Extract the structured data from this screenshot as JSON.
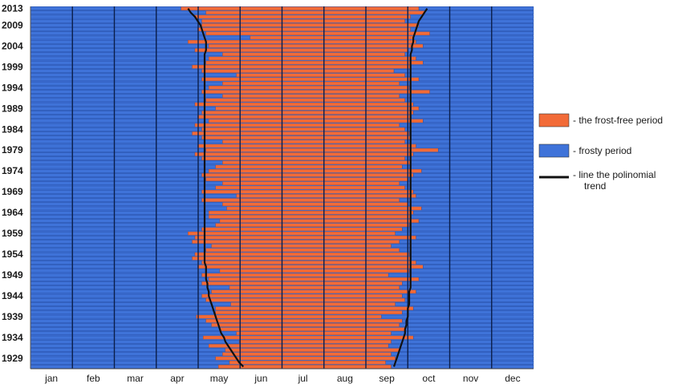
{
  "chart_data": {
    "type": "bar",
    "orientation": "horizontal",
    "stacked": true,
    "y_ticks": [
      "2013",
      "2009",
      "2004",
      "1999",
      "1994",
      "1989",
      "1984",
      "1979",
      "1974",
      "1969",
      "1964",
      "1959",
      "1954",
      "1949",
      "1944",
      "1939",
      "1934",
      "1929"
    ],
    "x_ticks": [
      "jan",
      "feb",
      "mar",
      "apr",
      "may",
      "jun",
      "jul",
      "aug",
      "sep",
      "oct",
      "nov",
      "dec"
    ],
    "xlim_days": [
      1,
      365
    ],
    "ylim_years": [
      1927,
      2013
    ],
    "grid": "vertical month lines",
    "legend_position": "right",
    "series": [
      {
        "name": "- the frost-free period",
        "color": "#F26B38"
      },
      {
        "name": "- frosty period",
        "color": "#3F73D9"
      },
      {
        "name": "- line the polinomial trend",
        "color": "#111111"
      }
    ],
    "years": [
      1927,
      1928,
      1929,
      1930,
      1931,
      1932,
      1933,
      1934,
      1935,
      1936,
      1937,
      1938,
      1939,
      1940,
      1941,
      1942,
      1943,
      1944,
      1945,
      1946,
      1947,
      1948,
      1949,
      1950,
      1951,
      1952,
      1953,
      1954,
      1955,
      1956,
      1957,
      1958,
      1959,
      1960,
      1961,
      1962,
      1963,
      1964,
      1965,
      1966,
      1967,
      1968,
      1969,
      1970,
      1971,
      1972,
      1973,
      1974,
      1975,
      1976,
      1977,
      1978,
      1979,
      1980,
      1981,
      1982,
      1983,
      1984,
      1985,
      1986,
      1987,
      1988,
      1989,
      1990,
      1991,
      1992,
      1993,
      1994,
      1995,
      1996,
      1997,
      1998,
      1999,
      2000,
      2001,
      2002,
      2003,
      2004,
      2005,
      2006,
      2007,
      2008,
      2009,
      2010,
      2011,
      2012,
      2013
    ],
    "last_spring_frost_day": [
      137,
      145,
      135,
      140,
      142,
      130,
      152,
      126,
      150,
      138,
      132,
      128,
      121,
      135,
      135,
      146,
      128,
      125,
      132,
      145,
      125,
      130,
      125,
      138,
      122,
      125,
      118,
      120,
      128,
      132,
      118,
      120,
      115,
      125,
      135,
      138,
      130,
      130,
      143,
      140,
      125,
      150,
      125,
      135,
      140,
      128,
      125,
      130,
      135,
      140,
      125,
      120,
      128,
      122,
      140,
      125,
      118,
      125,
      120,
      130,
      122,
      125,
      135,
      120,
      128,
      140,
      125,
      130,
      140,
      125,
      150,
      125,
      118,
      128,
      130,
      140,
      120,
      130,
      115,
      160,
      128,
      122,
      125,
      125,
      120,
      128,
      110
    ],
    "first_autumn_frost_day": [
      262,
      258,
      265,
      262,
      268,
      260,
      262,
      278,
      262,
      272,
      268,
      270,
      255,
      270,
      278,
      265,
      272,
      270,
      280,
      268,
      270,
      282,
      260,
      275,
      285,
      280,
      276,
      275,
      268,
      262,
      268,
      280,
      265,
      270,
      275,
      282,
      276,
      278,
      284,
      274,
      268,
      280,
      278,
      272,
      268,
      274,
      278,
      284,
      270,
      276,
      272,
      278,
      296,
      280,
      272,
      276,
      275,
      272,
      268,
      285,
      276,
      278,
      282,
      278,
      272,
      268,
      290,
      275,
      268,
      282,
      272,
      264,
      276,
      285,
      280,
      272,
      274,
      285,
      280,
      278,
      290,
      276,
      282,
      272,
      276,
      286,
      282
    ],
    "trend_spring_day": [
      155,
      152,
      150,
      148,
      146,
      144,
      142,
      141,
      139,
      138,
      137,
      136,
      135,
      134,
      133,
      132,
      131,
      130,
      130,
      129,
      129,
      128,
      128,
      128,
      128,
      127,
      127,
      127,
      127,
      127,
      127,
      127,
      127,
      127,
      127,
      127,
      127,
      127,
      127,
      127,
      127,
      127,
      127,
      127,
      127,
      127,
      127,
      127,
      127,
      127,
      127,
      127,
      127,
      127,
      127,
      127,
      127,
      127,
      127,
      127,
      127,
      127,
      127,
      127,
      127,
      127,
      127,
      127,
      127,
      127,
      127,
      127,
      127,
      127,
      127,
      127,
      128,
      128,
      128,
      127,
      126,
      125,
      124,
      122,
      120,
      117,
      115
    ],
    "trend_autumn_day": [
      264,
      265,
      266,
      267,
      268,
      269,
      270,
      271,
      272,
      272,
      273,
      273,
      274,
      274,
      274,
      275,
      275,
      275,
      275,
      276,
      276,
      276,
      276,
      276,
      276,
      276,
      276,
      276,
      276,
      276,
      276,
      276,
      276,
      276,
      276,
      276,
      276,
      276,
      276,
      276,
      276,
      276,
      276,
      276,
      276,
      276,
      276,
      276,
      276,
      276,
      276,
      276,
      276,
      276,
      276,
      276,
      276,
      276,
      276,
      276,
      276,
      276,
      276,
      276,
      276,
      276,
      276,
      276,
      276,
      276,
      276,
      276,
      276,
      276,
      276,
      276,
      277,
      277,
      278,
      278,
      279,
      280,
      281,
      282,
      284,
      286,
      288
    ]
  }
}
